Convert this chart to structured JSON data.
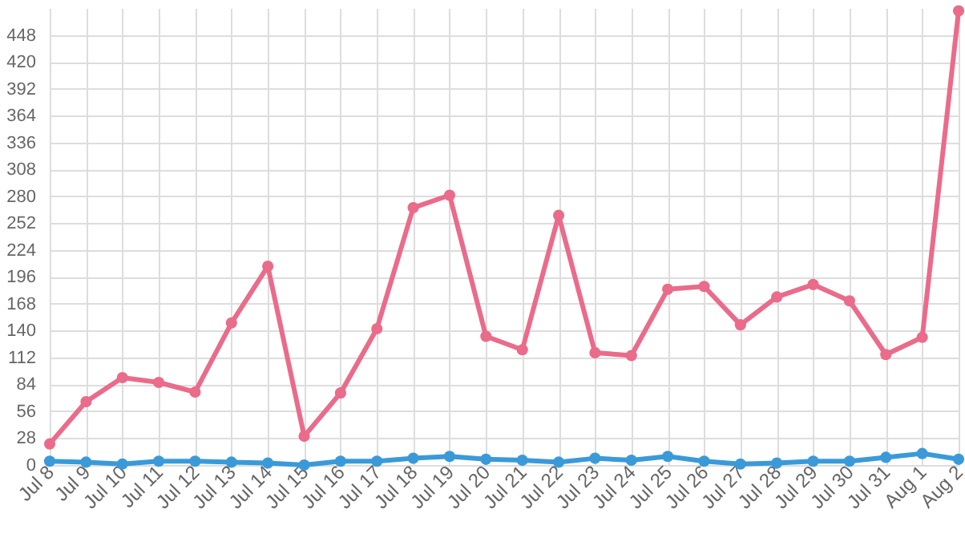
{
  "chart_data": {
    "type": "line",
    "categories": [
      "Jul 8",
      "Jul 9",
      "Jul 10",
      "Jul 11",
      "Jul 12",
      "Jul 13",
      "Jul 14",
      "Jul 15",
      "Jul 16",
      "Jul 17",
      "Jul 18",
      "Jul 19",
      "Jul 20",
      "Jul 21",
      "Jul 22",
      "Jul 23",
      "Jul 24",
      "Jul 25",
      "Jul 26",
      "Jul 27",
      "Jul 28",
      "Jul 29",
      "Jul 30",
      "Jul 31",
      "Aug 1",
      "Aug 2"
    ],
    "series": [
      {
        "color": "#ea6b8a",
        "values": [
          22,
          66,
          91,
          86,
          76,
          148,
          207,
          30,
          75,
          142,
          268,
          281,
          134,
          120,
          260,
          117,
          114,
          183,
          186,
          146,
          175,
          188,
          171,
          115,
          133,
          473
        ]
      },
      {
        "color": "#3a9ad9",
        "values": [
          4,
          3,
          1,
          4,
          4,
          3,
          2,
          0,
          4,
          4,
          7,
          9,
          6,
          5,
          3,
          7,
          5,
          9,
          4,
          1,
          2,
          4,
          4,
          8,
          12,
          6
        ]
      }
    ],
    "ylim": [
      0,
      476
    ],
    "yticks": [
      0,
      28,
      56,
      84,
      112,
      140,
      168,
      196,
      224,
      252,
      280,
      308,
      336,
      364,
      392,
      420,
      448
    ],
    "grid": true,
    "marker": "circle",
    "line_style": "solid"
  }
}
